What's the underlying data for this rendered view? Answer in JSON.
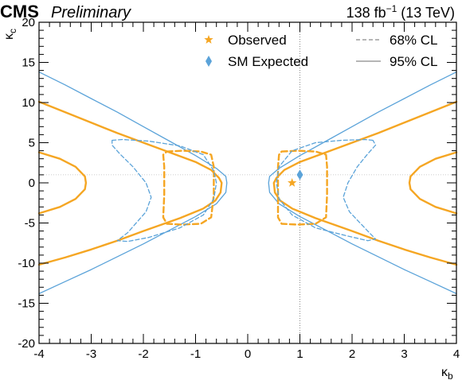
{
  "header": {
    "experiment": "CMS",
    "status": "Preliminary",
    "lumi_prefix": "138 fb",
    "lumi_exponent": "−1",
    "lumi_suffix": " (13 TeV)"
  },
  "chart_data": {
    "type": "contour",
    "xlabel": "κ",
    "xlabel_sub": "b",
    "ylabel": "κ",
    "ylabel_sub": "c",
    "xlim": [
      -4,
      4
    ],
    "ylim": [
      -20,
      20
    ],
    "xticks": [
      "-4",
      "-3",
      "-2",
      "-1",
      "0",
      "1",
      "2",
      "3",
      "4"
    ],
    "yticks": [
      "20",
      "15",
      "10",
      "5",
      "0",
      "-5",
      "-10",
      "-15",
      "-20"
    ],
    "grid": false,
    "legend": {
      "placement": "top",
      "observed": "Observed",
      "sm_expected": "SM Expected",
      "cl68": "68% CL",
      "cl95": "95% CL"
    },
    "colors": {
      "observed": "#f5a623",
      "expected": "#5ba3d9",
      "legend_line": "#8a8a8a",
      "reference_line": "#888888"
    },
    "points": {
      "observed": {
        "x": 0.85,
        "y": 0.0
      },
      "sm_expected": {
        "x": 1.0,
        "y": 1.0
      }
    },
    "reference_lines": {
      "vertical_x": 1.0,
      "horizontal_y": 1.0
    },
    "series": [
      {
        "group": "observed",
        "style": "solid",
        "points": [
          [
            -4.0,
            10.1
          ],
          [
            -3.5,
            8.8
          ],
          [
            -3.0,
            7.5
          ],
          [
            -2.5,
            6.2
          ],
          [
            -2.0,
            5.0
          ],
          [
            -1.5,
            3.8
          ],
          [
            -1.0,
            2.6
          ],
          [
            -0.7,
            1.6
          ],
          [
            -0.55,
            0.6
          ],
          [
            -0.5,
            0.0
          ],
          [
            -0.52,
            -1.2
          ],
          [
            -0.62,
            -2.2
          ],
          [
            -0.85,
            -3.2
          ],
          [
            -1.3,
            -4.4
          ],
          [
            -2.0,
            -6.0
          ],
          [
            -2.5,
            -7.2
          ],
          [
            -3.0,
            -8.3
          ],
          [
            -3.5,
            -9.3
          ],
          [
            -4.0,
            -10.2
          ]
        ]
      },
      {
        "group": "observed",
        "style": "solid",
        "points": [
          [
            4.0,
            10.1
          ],
          [
            3.5,
            8.8
          ],
          [
            3.0,
            7.5
          ],
          [
            2.5,
            6.2
          ],
          [
            2.0,
            5.0
          ],
          [
            1.5,
            3.8
          ],
          [
            1.0,
            2.6
          ],
          [
            0.7,
            1.6
          ],
          [
            0.55,
            0.6
          ],
          [
            0.5,
            0.0
          ],
          [
            0.52,
            -1.2
          ],
          [
            0.62,
            -2.2
          ],
          [
            0.85,
            -3.2
          ],
          [
            1.3,
            -4.4
          ],
          [
            2.0,
            -6.0
          ],
          [
            2.5,
            -7.2
          ],
          [
            3.0,
            -8.3
          ],
          [
            3.5,
            -9.3
          ],
          [
            4.0,
            -10.2
          ]
        ]
      },
      {
        "group": "observed",
        "style": "solid",
        "points": [
          [
            -4.0,
            3.8
          ],
          [
            -3.6,
            3.0
          ],
          [
            -3.3,
            2.0
          ],
          [
            -3.12,
            0.8
          ],
          [
            -3.1,
            0.0
          ],
          [
            -3.12,
            -0.8
          ],
          [
            -3.3,
            -2.0
          ],
          [
            -3.6,
            -3.0
          ],
          [
            -4.0,
            -3.8
          ]
        ]
      },
      {
        "group": "observed",
        "style": "solid",
        "points": [
          [
            4.0,
            3.8
          ],
          [
            3.6,
            3.0
          ],
          [
            3.3,
            2.0
          ],
          [
            3.12,
            0.8
          ],
          [
            3.1,
            0.0
          ],
          [
            3.12,
            -0.8
          ],
          [
            3.3,
            -2.0
          ],
          [
            3.6,
            -3.0
          ],
          [
            4.0,
            -3.8
          ]
        ]
      },
      {
        "group": "expected",
        "style": "solid",
        "points": [
          [
            -4.0,
            13.8
          ],
          [
            -3.5,
            12.2
          ],
          [
            -3.0,
            10.5
          ],
          [
            -2.5,
            8.8
          ],
          [
            -2.0,
            7.0
          ],
          [
            -1.5,
            5.2
          ],
          [
            -1.0,
            3.4
          ],
          [
            -0.6,
            1.8
          ],
          [
            -0.42,
            0.8
          ],
          [
            -0.4,
            0.0
          ],
          [
            -0.42,
            -1.2
          ],
          [
            -0.6,
            -2.6
          ],
          [
            -1.0,
            -4.2
          ],
          [
            -1.5,
            -5.9
          ],
          [
            -2.0,
            -7.6
          ],
          [
            -2.5,
            -9.2
          ],
          [
            -3.0,
            -10.8
          ],
          [
            -3.5,
            -12.3
          ],
          [
            -4.0,
            -13.8
          ]
        ]
      },
      {
        "group": "expected",
        "style": "solid",
        "points": [
          [
            4.0,
            13.8
          ],
          [
            3.5,
            12.2
          ],
          [
            3.0,
            10.5
          ],
          [
            2.5,
            8.8
          ],
          [
            2.0,
            7.0
          ],
          [
            1.5,
            5.2
          ],
          [
            1.0,
            3.4
          ],
          [
            0.6,
            1.8
          ],
          [
            0.42,
            0.8
          ],
          [
            0.4,
            0.0
          ],
          [
            0.42,
            -1.2
          ],
          [
            0.6,
            -2.6
          ],
          [
            1.0,
            -4.2
          ],
          [
            1.5,
            -5.9
          ],
          [
            2.0,
            -7.6
          ],
          [
            2.5,
            -9.2
          ],
          [
            3.0,
            -10.8
          ],
          [
            3.5,
            -12.3
          ],
          [
            4.0,
            -13.8
          ]
        ]
      },
      {
        "group": "observed",
        "style": "dashed",
        "closed": true,
        "points": [
          [
            -1.55,
            3.9
          ],
          [
            -1.25,
            4.0
          ],
          [
            -0.9,
            3.9
          ],
          [
            -0.7,
            3.5
          ],
          [
            -0.65,
            2.0
          ],
          [
            -0.65,
            -1.5
          ],
          [
            -0.7,
            -4.3
          ],
          [
            -0.9,
            -5.1
          ],
          [
            -1.25,
            -5.2
          ],
          [
            -1.55,
            -5.1
          ],
          [
            -1.62,
            -4.3
          ],
          [
            -1.6,
            -1.5
          ],
          [
            -1.6,
            2.0
          ],
          [
            -1.62,
            3.5
          ]
        ]
      },
      {
        "group": "observed",
        "style": "dashed",
        "closed": true,
        "points": [
          [
            0.65,
            3.9
          ],
          [
            0.95,
            4.0
          ],
          [
            1.3,
            3.9
          ],
          [
            1.5,
            3.5
          ],
          [
            1.52,
            2.0
          ],
          [
            1.52,
            -1.5
          ],
          [
            1.5,
            -4.3
          ],
          [
            1.3,
            -5.1
          ],
          [
            0.95,
            -5.2
          ],
          [
            0.65,
            -5.1
          ],
          [
            0.58,
            -4.3
          ],
          [
            0.58,
            -1.5
          ],
          [
            0.58,
            2.0
          ],
          [
            0.6,
            3.5
          ]
        ]
      },
      {
        "group": "expected",
        "style": "dashed",
        "closed": true,
        "points": [
          [
            -2.6,
            5.3
          ],
          [
            -2.4,
            5.4
          ],
          [
            -1.9,
            5.2
          ],
          [
            -1.3,
            4.6
          ],
          [
            -0.85,
            3.5
          ],
          [
            -0.65,
            1.5
          ],
          [
            -0.6,
            0.0
          ],
          [
            -0.65,
            -2.0
          ],
          [
            -0.85,
            -4.0
          ],
          [
            -1.3,
            -5.6
          ],
          [
            -1.9,
            -6.8
          ],
          [
            -2.3,
            -7.3
          ],
          [
            -2.5,
            -7.2
          ],
          [
            -2.3,
            -6.2
          ],
          [
            -1.95,
            -3.6
          ],
          [
            -1.85,
            -1.8
          ],
          [
            -1.95,
            0.0
          ],
          [
            -2.2,
            2.0
          ],
          [
            -2.45,
            3.6
          ],
          [
            -2.6,
            4.7
          ]
        ]
      },
      {
        "group": "expected",
        "style": "dashed",
        "closed": true,
        "points": [
          [
            2.4,
            5.3
          ],
          [
            2.25,
            5.4
          ],
          [
            1.8,
            5.3
          ],
          [
            1.3,
            5.0
          ],
          [
            0.85,
            4.0
          ],
          [
            0.6,
            2.0
          ],
          [
            0.55,
            0.0
          ],
          [
            0.6,
            -2.0
          ],
          [
            0.85,
            -4.0
          ],
          [
            1.3,
            -5.6
          ],
          [
            1.9,
            -6.6
          ],
          [
            2.3,
            -7.2
          ],
          [
            2.45,
            -7.0
          ],
          [
            2.3,
            -6.0
          ],
          [
            1.95,
            -3.6
          ],
          [
            1.83,
            -1.8
          ],
          [
            1.92,
            0.0
          ],
          [
            2.1,
            2.0
          ],
          [
            2.3,
            3.6
          ],
          [
            2.45,
            4.7
          ]
        ]
      }
    ]
  }
}
